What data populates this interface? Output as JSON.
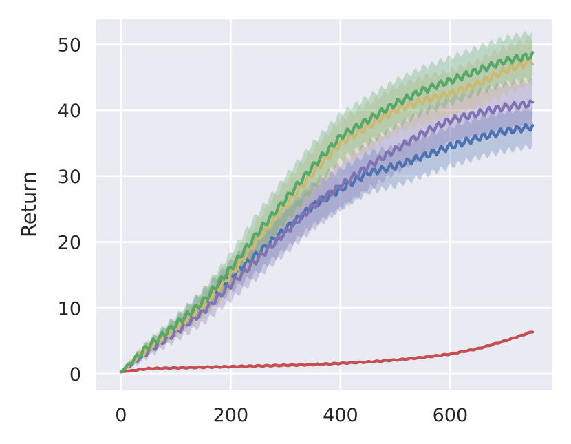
{
  "chart_data": {
    "type": "line",
    "title": "",
    "xlabel": "",
    "ylabel": "Return",
    "xlim": [
      -45,
      785
    ],
    "ylim": [
      -2.5,
      53.8
    ],
    "xticks": [
      0,
      200,
      400,
      600
    ],
    "yticks": [
      0,
      10,
      20,
      30,
      40,
      50
    ],
    "grid": true,
    "legend": "none",
    "background": "#eaeaf2",
    "x": [
      0,
      50,
      100,
      150,
      200,
      250,
      300,
      350,
      400,
      450,
      500,
      550,
      600,
      650,
      700,
      750
    ],
    "series": [
      {
        "color": "#c44e52",
        "values": [
          0.3,
          0.8,
          0.9,
          1.0,
          1.1,
          1.2,
          1.3,
          1.4,
          1.6,
          1.8,
          2.1,
          2.5,
          3.0,
          3.8,
          5.0,
          6.4
        ],
        "band": [
          0.1,
          0.1,
          0.1,
          0.1,
          0.1,
          0.1,
          0.1,
          0.1,
          0.1,
          0.1,
          0.1,
          0.1,
          0.1,
          0.2,
          0.2,
          0.2
        ]
      },
      {
        "color": "#4c72b0",
        "values": [
          0.3,
          4.0,
          7.3,
          10.8,
          14.8,
          18.3,
          22.0,
          25.5,
          28.0,
          30.5,
          31.5,
          33.0,
          34.5,
          35.8,
          36.8,
          37.5
        ],
        "band": [
          0.2,
          0.8,
          1.2,
          1.8,
          2.3,
          2.8,
          3.0,
          3.0,
          3.0,
          3.0,
          3.0,
          3.0,
          3.0,
          3.0,
          3.0,
          3.0
        ]
      },
      {
        "color": "#8172b3",
        "values": [
          0.3,
          3.5,
          6.3,
          9.5,
          13.5,
          17.5,
          21.5,
          25.5,
          28.5,
          31.5,
          34.0,
          36.5,
          38.5,
          39.5,
          40.5,
          41.0
        ],
        "band": [
          0.2,
          0.8,
          1.2,
          1.8,
          2.3,
          2.8,
          3.2,
          3.5,
          3.5,
          3.5,
          3.5,
          3.5,
          3.5,
          3.5,
          3.5,
          3.5
        ]
      },
      {
        "color": "#ccb974",
        "values": [
          0.3,
          4.0,
          7.0,
          10.5,
          15.0,
          20.5,
          25.5,
          30.5,
          35.0,
          37.5,
          40.0,
          41.5,
          42.5,
          44.0,
          46.0,
          47.5
        ],
        "band": [
          0.2,
          0.8,
          1.2,
          1.8,
          2.3,
          3.0,
          3.5,
          3.5,
          3.5,
          3.5,
          3.5,
          3.5,
          3.5,
          3.5,
          3.5,
          3.5
        ]
      },
      {
        "color": "#55a868",
        "values": [
          0.3,
          4.2,
          7.5,
          11.0,
          16.0,
          21.5,
          26.5,
          31.5,
          36.0,
          38.5,
          41.0,
          43.0,
          44.5,
          46.0,
          47.5,
          48.3
        ],
        "band": [
          0.2,
          0.8,
          1.2,
          1.8,
          2.3,
          3.0,
          3.5,
          3.5,
          3.5,
          3.5,
          3.5,
          3.5,
          3.5,
          3.5,
          3.5,
          3.5
        ]
      }
    ]
  }
}
